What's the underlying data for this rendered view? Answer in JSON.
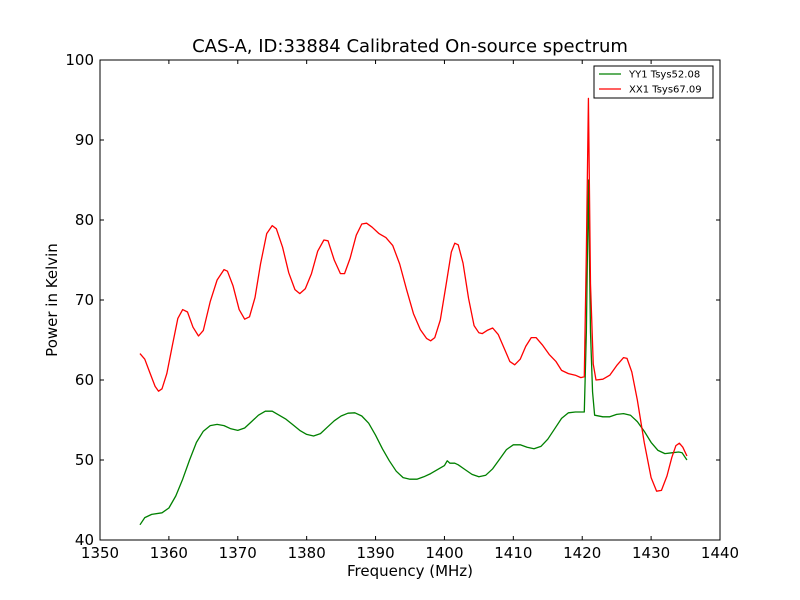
{
  "chart_data": {
    "type": "line",
    "title": "CAS-A, ID:33884 Calibrated On-source spectrum",
    "xlabel": "Frequency (MHz)",
    "ylabel": "Power in Kelvin",
    "xlim": [
      1350,
      1440
    ],
    "ylim": [
      40,
      100
    ],
    "xticks": [
      1350,
      1360,
      1370,
      1380,
      1390,
      1400,
      1410,
      1420,
      1430,
      1440
    ],
    "yticks": [
      40,
      50,
      60,
      70,
      80,
      90,
      100
    ],
    "grid": false,
    "legend_position": "top-right",
    "series": [
      {
        "name": "YY1 Tsys52.08",
        "color": "#008000",
        "points": [
          [
            1355.8,
            41.9
          ],
          [
            1356.5,
            42.8
          ],
          [
            1357.5,
            43.2
          ],
          [
            1359,
            43.4
          ],
          [
            1360,
            44.0
          ],
          [
            1361,
            45.5
          ],
          [
            1362,
            47.6
          ],
          [
            1363,
            50.0
          ],
          [
            1364,
            52.2
          ],
          [
            1365,
            53.6
          ],
          [
            1366,
            54.3
          ],
          [
            1367,
            54.45
          ],
          [
            1368,
            54.3
          ],
          [
            1369,
            53.9
          ],
          [
            1370,
            53.7
          ],
          [
            1371,
            54.0
          ],
          [
            1372,
            54.8
          ],
          [
            1373,
            55.6
          ],
          [
            1374,
            56.1
          ],
          [
            1375,
            56.1
          ],
          [
            1376,
            55.6
          ],
          [
            1377,
            55.1
          ],
          [
            1378,
            54.4
          ],
          [
            1379,
            53.7
          ],
          [
            1380,
            53.2
          ],
          [
            1381,
            53.0
          ],
          [
            1382,
            53.3
          ],
          [
            1383,
            54.1
          ],
          [
            1384,
            54.9
          ],
          [
            1385,
            55.5
          ],
          [
            1386,
            55.85
          ],
          [
            1387,
            55.9
          ],
          [
            1388,
            55.5
          ],
          [
            1389,
            54.6
          ],
          [
            1390,
            53.1
          ],
          [
            1391,
            51.4
          ],
          [
            1392,
            49.9
          ],
          [
            1393,
            48.6
          ],
          [
            1394,
            47.8
          ],
          [
            1395,
            47.6
          ],
          [
            1396,
            47.6
          ],
          [
            1397,
            47.9
          ],
          [
            1398,
            48.3
          ],
          [
            1399,
            48.8
          ],
          [
            1400,
            49.3
          ],
          [
            1400.4,
            49.9
          ],
          [
            1400.8,
            49.6
          ],
          [
            1401.5,
            49.6
          ],
          [
            1402,
            49.4
          ],
          [
            1403,
            48.8
          ],
          [
            1404,
            48.2
          ],
          [
            1405,
            47.9
          ],
          [
            1406,
            48.1
          ],
          [
            1407,
            48.9
          ],
          [
            1408,
            50.1
          ],
          [
            1409,
            51.3
          ],
          [
            1410,
            51.9
          ],
          [
            1411,
            51.9
          ],
          [
            1412,
            51.6
          ],
          [
            1413,
            51.4
          ],
          [
            1414,
            51.7
          ],
          [
            1415,
            52.6
          ],
          [
            1416,
            53.9
          ],
          [
            1417,
            55.2
          ],
          [
            1418,
            55.9
          ],
          [
            1419,
            56.0
          ],
          [
            1420.3,
            56.0
          ],
          [
            1420.6,
            66.0
          ],
          [
            1420.9,
            85.0
          ],
          [
            1421.2,
            66.0
          ],
          [
            1421.5,
            58.5
          ],
          [
            1421.8,
            55.6
          ],
          [
            1423,
            55.4
          ],
          [
            1424,
            55.4
          ],
          [
            1425,
            55.7
          ],
          [
            1426,
            55.8
          ],
          [
            1427,
            55.6
          ],
          [
            1428,
            54.8
          ],
          [
            1429,
            53.6
          ],
          [
            1430,
            52.2
          ],
          [
            1431,
            51.2
          ],
          [
            1432,
            50.8
          ],
          [
            1433,
            50.9
          ],
          [
            1434,
            51.0
          ],
          [
            1434.5,
            50.9
          ],
          [
            1435.2,
            50.0
          ]
        ]
      },
      {
        "name": "XX1 Tsys67.09",
        "color": "#ff0000",
        "points": [
          [
            1355.8,
            63.3
          ],
          [
            1356.5,
            62.6
          ],
          [
            1357.2,
            61.0
          ],
          [
            1358,
            59.2
          ],
          [
            1358.5,
            58.6
          ],
          [
            1359,
            58.9
          ],
          [
            1359.7,
            60.8
          ],
          [
            1360.5,
            64.3
          ],
          [
            1361.3,
            67.7
          ],
          [
            1362,
            68.8
          ],
          [
            1362.7,
            68.5
          ],
          [
            1363.5,
            66.6
          ],
          [
            1364.3,
            65.5
          ],
          [
            1365,
            66.2
          ],
          [
            1366,
            69.8
          ],
          [
            1367,
            72.5
          ],
          [
            1368,
            73.8
          ],
          [
            1368.5,
            73.6
          ],
          [
            1369.3,
            71.8
          ],
          [
            1370.2,
            68.8
          ],
          [
            1371,
            67.6
          ],
          [
            1371.7,
            67.9
          ],
          [
            1372.5,
            70.3
          ],
          [
            1373.3,
            74.5
          ],
          [
            1374.2,
            78.3
          ],
          [
            1375,
            79.3
          ],
          [
            1375.6,
            78.9
          ],
          [
            1376.5,
            76.6
          ],
          [
            1377.4,
            73.4
          ],
          [
            1378.3,
            71.3
          ],
          [
            1379,
            70.8
          ],
          [
            1379.8,
            71.4
          ],
          [
            1380.7,
            73.3
          ],
          [
            1381.6,
            76.1
          ],
          [
            1382.5,
            77.5
          ],
          [
            1383.1,
            77.4
          ],
          [
            1384,
            75.0
          ],
          [
            1384.9,
            73.3
          ],
          [
            1385.5,
            73.3
          ],
          [
            1386.3,
            75.2
          ],
          [
            1387.2,
            78.1
          ],
          [
            1388,
            79.5
          ],
          [
            1388.7,
            79.6
          ],
          [
            1389.5,
            79.1
          ],
          [
            1390.5,
            78.3
          ],
          [
            1391.5,
            77.8
          ],
          [
            1392.5,
            76.8
          ],
          [
            1393.5,
            74.5
          ],
          [
            1394.5,
            71.3
          ],
          [
            1395.5,
            68.3
          ],
          [
            1396.5,
            66.3
          ],
          [
            1397.4,
            65.2
          ],
          [
            1398,
            64.9
          ],
          [
            1398.6,
            65.3
          ],
          [
            1399.4,
            67.5
          ],
          [
            1400.2,
            71.7
          ],
          [
            1401,
            76.0
          ],
          [
            1401.5,
            77.1
          ],
          [
            1402,
            76.9
          ],
          [
            1402.7,
            74.6
          ],
          [
            1403.5,
            70.2
          ],
          [
            1404.3,
            66.8
          ],
          [
            1405,
            65.9
          ],
          [
            1405.5,
            65.8
          ],
          [
            1406.2,
            66.2
          ],
          [
            1407,
            66.5
          ],
          [
            1407.8,
            65.7
          ],
          [
            1408.7,
            63.9
          ],
          [
            1409.5,
            62.3
          ],
          [
            1410.2,
            61.9
          ],
          [
            1411,
            62.6
          ],
          [
            1411.8,
            64.2
          ],
          [
            1412.6,
            65.3
          ],
          [
            1413.3,
            65.3
          ],
          [
            1414.2,
            64.4
          ],
          [
            1415.2,
            63.2
          ],
          [
            1416.2,
            62.3
          ],
          [
            1417,
            61.2
          ],
          [
            1418,
            60.8
          ],
          [
            1419,
            60.6
          ],
          [
            1419.8,
            60.3
          ],
          [
            1420.3,
            60.4
          ],
          [
            1420.6,
            76.0
          ],
          [
            1420.9,
            95.2
          ],
          [
            1421.2,
            72.0
          ],
          [
            1421.6,
            62.0
          ],
          [
            1422,
            60.0
          ],
          [
            1423,
            60.1
          ],
          [
            1424,
            60.6
          ],
          [
            1425,
            61.8
          ],
          [
            1426,
            62.8
          ],
          [
            1426.5,
            62.7
          ],
          [
            1427.2,
            61.0
          ],
          [
            1428,
            57.5
          ],
          [
            1429,
            52.2
          ],
          [
            1430,
            47.8
          ],
          [
            1430.8,
            46.1
          ],
          [
            1431.5,
            46.2
          ],
          [
            1432.3,
            48.0
          ],
          [
            1433,
            50.3
          ],
          [
            1433.6,
            51.8
          ],
          [
            1434.1,
            52.1
          ],
          [
            1434.6,
            51.6
          ],
          [
            1435.2,
            50.5
          ]
        ]
      }
    ]
  }
}
